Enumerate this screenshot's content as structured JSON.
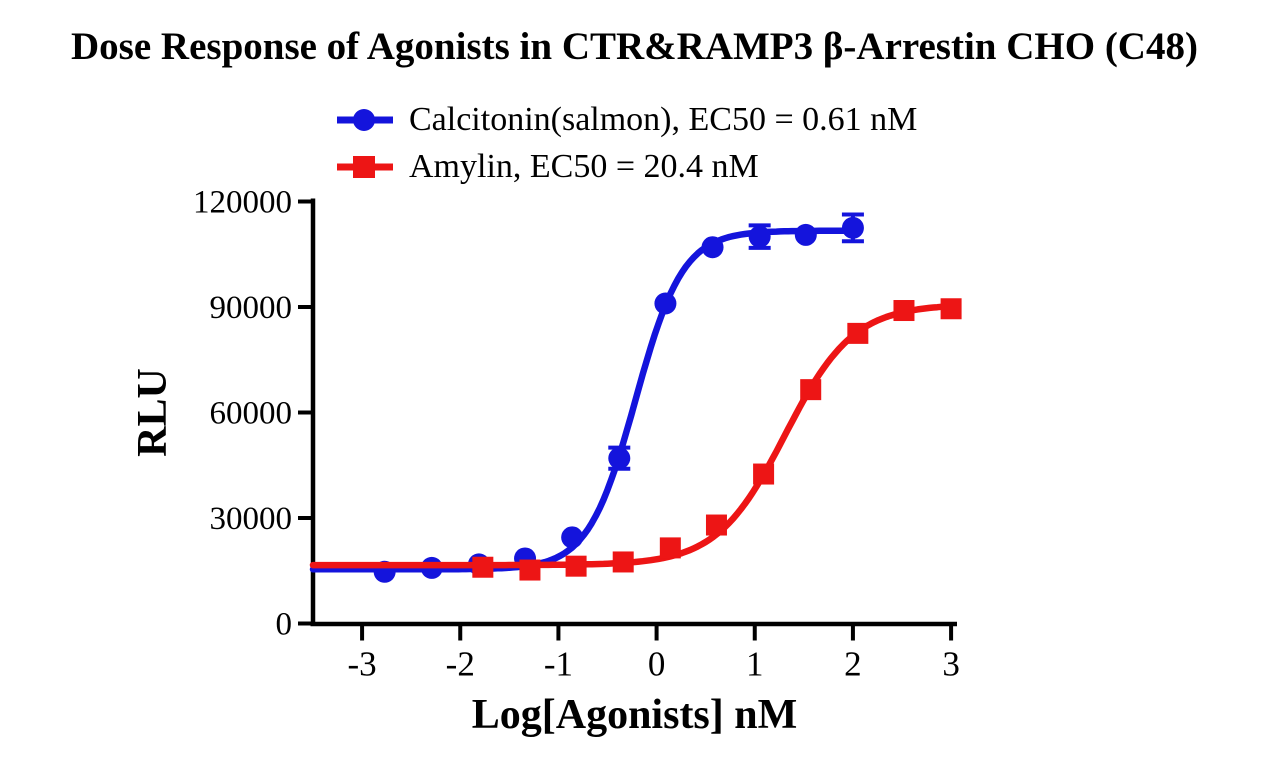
{
  "chart_data": {
    "type": "line",
    "subtype": "dose-response scatter points with sigmoidal fit curves",
    "title": "Dose Response of Agonists in CTR&RAMP3 β-Arrestin CHO (C48)",
    "xlabel": "Log[Agonists] nM",
    "ylabel": "RLU",
    "xlim": [
      -3.5,
      3.05
    ],
    "ylim": [
      0,
      120000
    ],
    "x_ticks": [
      -3,
      -2,
      -1,
      0,
      1,
      2,
      3
    ],
    "y_ticks": [
      0,
      30000,
      60000,
      90000,
      120000
    ],
    "grid": false,
    "legend_position": "top-left, above plot area",
    "axis_color": "#000000",
    "background_color": "#ffffff",
    "series": [
      {
        "name": "Calcitonin(salmon)",
        "legend_label": "Calcitonin(salmon), EC50 = 0.61 nM",
        "ec50_nM": 0.61,
        "color": "#1414dc",
        "marker": "circle",
        "x_log_nM": [
          -2.77,
          -2.29,
          -1.81,
          -1.34,
          -0.86,
          -0.38,
          0.09,
          0.57,
          1.05,
          1.52,
          2.0
        ],
        "y_rlu": [
          14700,
          15800,
          16800,
          18500,
          24500,
          47000,
          91000,
          107000,
          110000,
          110500,
          112500
        ],
        "y_err": [
          0,
          0,
          0,
          0,
          0,
          3000,
          0,
          0,
          3200,
          0,
          3800
        ],
        "fit": {
          "bottom": 15400,
          "top": 111700,
          "log_ec50": -0.215,
          "hill": 1.8,
          "x_start": -3.5,
          "x_end": 2.0
        }
      },
      {
        "name": "Amylin",
        "legend_label": "Amylin, EC50 = 20.4 nM",
        "ec50_nM": 20.4,
        "color": "#ed1515",
        "marker": "square",
        "x_log_nM": [
          -1.77,
          -1.29,
          -0.82,
          -0.34,
          0.14,
          0.61,
          1.09,
          1.57,
          2.05,
          2.52,
          3.0
        ],
        "y_rlu": [
          16000,
          15200,
          16300,
          17500,
          21500,
          28000,
          42500,
          66500,
          82500,
          89000,
          89500
        ],
        "y_err": [
          0,
          0,
          0,
          0,
          0,
          0,
          0,
          0,
          0,
          0,
          0
        ],
        "fit": {
          "bottom": 16600,
          "top": 90800,
          "log_ec50": 1.31,
          "hill": 1.25,
          "x_start": -3.5,
          "x_end": 3.0
        }
      }
    ]
  }
}
